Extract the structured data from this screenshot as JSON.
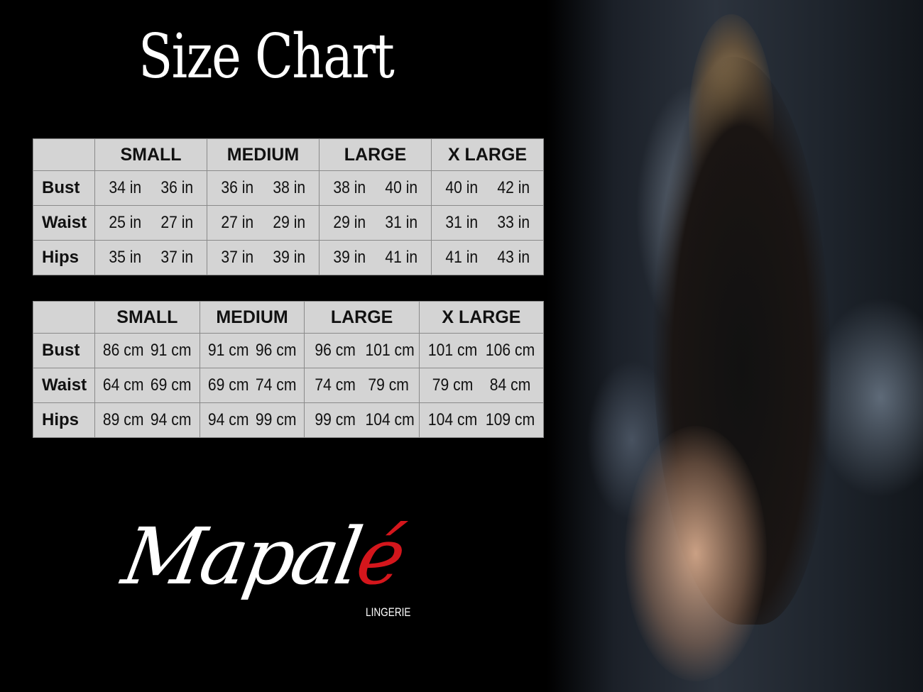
{
  "title": "Size Chart",
  "colors": {
    "table_bg": "#d4d4d4",
    "background": "#000000",
    "logo_accent": "#d4161c"
  },
  "tables": [
    {
      "sizes": [
        "SMALL",
        "MEDIUM",
        "LARGE",
        "X LARGE"
      ],
      "rows": [
        {
          "label": "Bust",
          "values": [
            "34 in",
            "36 in",
            "36 in",
            "38 in",
            "38 in",
            "40 in",
            "40 in",
            "42 in"
          ]
        },
        {
          "label": "Waist",
          "values": [
            "25 in",
            "27 in",
            "27 in",
            "29 in",
            "29 in",
            "31 in",
            "31 in",
            "33 in"
          ]
        },
        {
          "label": "Hips",
          "values": [
            "35 in",
            "37 in",
            "37 in",
            "39 in",
            "39 in",
            "41 in",
            "41 in",
            "43 in"
          ]
        }
      ]
    },
    {
      "sizes": [
        "SMALL",
        "MEDIUM",
        "LARGE",
        "X LARGE"
      ],
      "rows": [
        {
          "label": "Bust",
          "values": [
            "86 cm",
            "91 cm",
            "91 cm",
            "96 cm",
            "96 cm",
            "101 cm",
            "101 cm",
            "106 cm"
          ]
        },
        {
          "label": "Waist",
          "values": [
            "64 cm",
            "69 cm",
            "69 cm",
            "74 cm",
            "74 cm",
            "79 cm",
            "79 cm",
            "84 cm"
          ]
        },
        {
          "label": "Hips",
          "values": [
            "89 cm",
            "94 cm",
            "94 cm",
            "99 cm",
            "99 cm",
            "104 cm",
            "104 cm",
            "109 cm"
          ]
        }
      ]
    }
  ],
  "logo": {
    "text_main": "Mapal",
    "text_accent": "é",
    "subtitle": "LINGERIE"
  }
}
